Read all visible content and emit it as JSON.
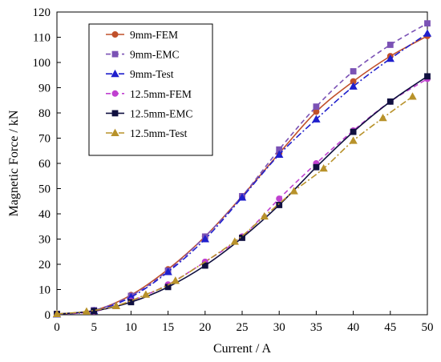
{
  "chart_data": {
    "type": "line",
    "title": "",
    "xlabel": "Current / A",
    "ylabel": "Magnetic Force / kN",
    "xlim": [
      0,
      50
    ],
    "ylim": [
      0,
      120
    ],
    "x_ticks": [
      "0",
      "5",
      "10",
      "15",
      "20",
      "25",
      "30",
      "35",
      "40",
      "45",
      "50"
    ],
    "y_ticks": [
      "0",
      "10",
      "20",
      "30",
      "40",
      "50",
      "60",
      "70",
      "80",
      "90",
      "100",
      "110",
      "120"
    ],
    "grid": false,
    "legend_position": "top-left",
    "series": [
      {
        "name": "9mm-FEM",
        "color": "#C0502A",
        "dash": "solid",
        "marker": "circle",
        "x": [
          0,
          5,
          10,
          15,
          20,
          25,
          30,
          35,
          40,
          45,
          50
        ],
        "y": [
          0.3,
          1.7,
          7.8,
          18.0,
          31.0,
          47.0,
          64.0,
          80.5,
          92.5,
          102.5,
          110.5
        ]
      },
      {
        "name": "9mm-EMC",
        "color": "#7B52B5",
        "dash": "dashed",
        "marker": "square",
        "x": [
          0,
          5,
          10,
          15,
          20,
          25,
          30,
          35,
          40,
          45,
          50
        ],
        "y": [
          0.3,
          1.8,
          7.5,
          17.5,
          31.0,
          47.0,
          65.5,
          82.5,
          96.5,
          107.0,
          115.5
        ]
      },
      {
        "name": "9mm-Test",
        "color": "#1F1FCC",
        "dash": "dashdot",
        "marker": "triangle",
        "x": [
          0,
          5,
          10,
          15,
          20,
          25,
          30,
          35,
          40,
          45,
          50
        ],
        "y": [
          0.2,
          1.5,
          7.0,
          17.0,
          30.0,
          46.5,
          63.5,
          77.5,
          90.5,
          101.5,
          111.5
        ]
      },
      {
        "name": "12.5mm-FEM",
        "color": "#C040D0",
        "dash": "dashed",
        "marker": "circle",
        "x": [
          0,
          5,
          10,
          15,
          20,
          25,
          30,
          35,
          40,
          45,
          50
        ],
        "y": [
          0.3,
          1.3,
          5.5,
          12.0,
          21.0,
          31.0,
          46.0,
          60.0,
          73.0,
          84.5,
          93.5
        ]
      },
      {
        "name": "12.5mm-EMC",
        "color": "#101040",
        "dash": "solid",
        "marker": "square",
        "x": [
          0,
          5,
          10,
          15,
          20,
          25,
          30,
          35,
          40,
          45,
          50
        ],
        "y": [
          0.3,
          1.5,
          5.0,
          11.0,
          19.5,
          30.5,
          43.5,
          58.5,
          72.5,
          84.5,
          94.5
        ]
      },
      {
        "name": "12.5mm-Test",
        "color": "#B8922A",
        "dash": "dashdot",
        "marker": "triangle",
        "x": [
          0,
          4,
          8,
          12,
          16,
          24,
          28,
          32,
          36,
          40,
          44,
          48
        ],
        "y": [
          0.3,
          1.3,
          3.5,
          8.0,
          13.5,
          29.0,
          39.0,
          49.0,
          58.0,
          69.0,
          78.0,
          86.5
        ]
      }
    ]
  }
}
